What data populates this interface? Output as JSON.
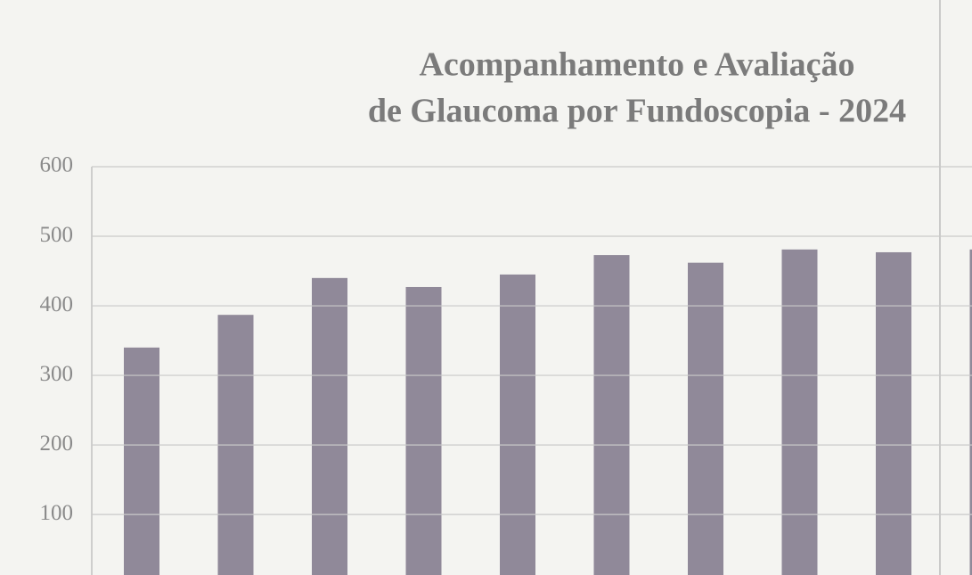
{
  "chart_data": {
    "type": "bar",
    "title": [
      "Acompanhamento e Avaliação",
      "de Glaucoma por Fundoscopia - 2024"
    ],
    "categories": [
      null,
      null,
      null,
      null,
      null,
      null,
      null,
      null,
      null,
      null
    ],
    "values": [
      340,
      387,
      440,
      427,
      445,
      473,
      462,
      481,
      477,
      481
    ],
    "color": "#8a8394",
    "ylim": [
      13,
      600
    ],
    "yticks": [
      100,
      200,
      300,
      400,
      500,
      600
    ],
    "grid": true
  }
}
